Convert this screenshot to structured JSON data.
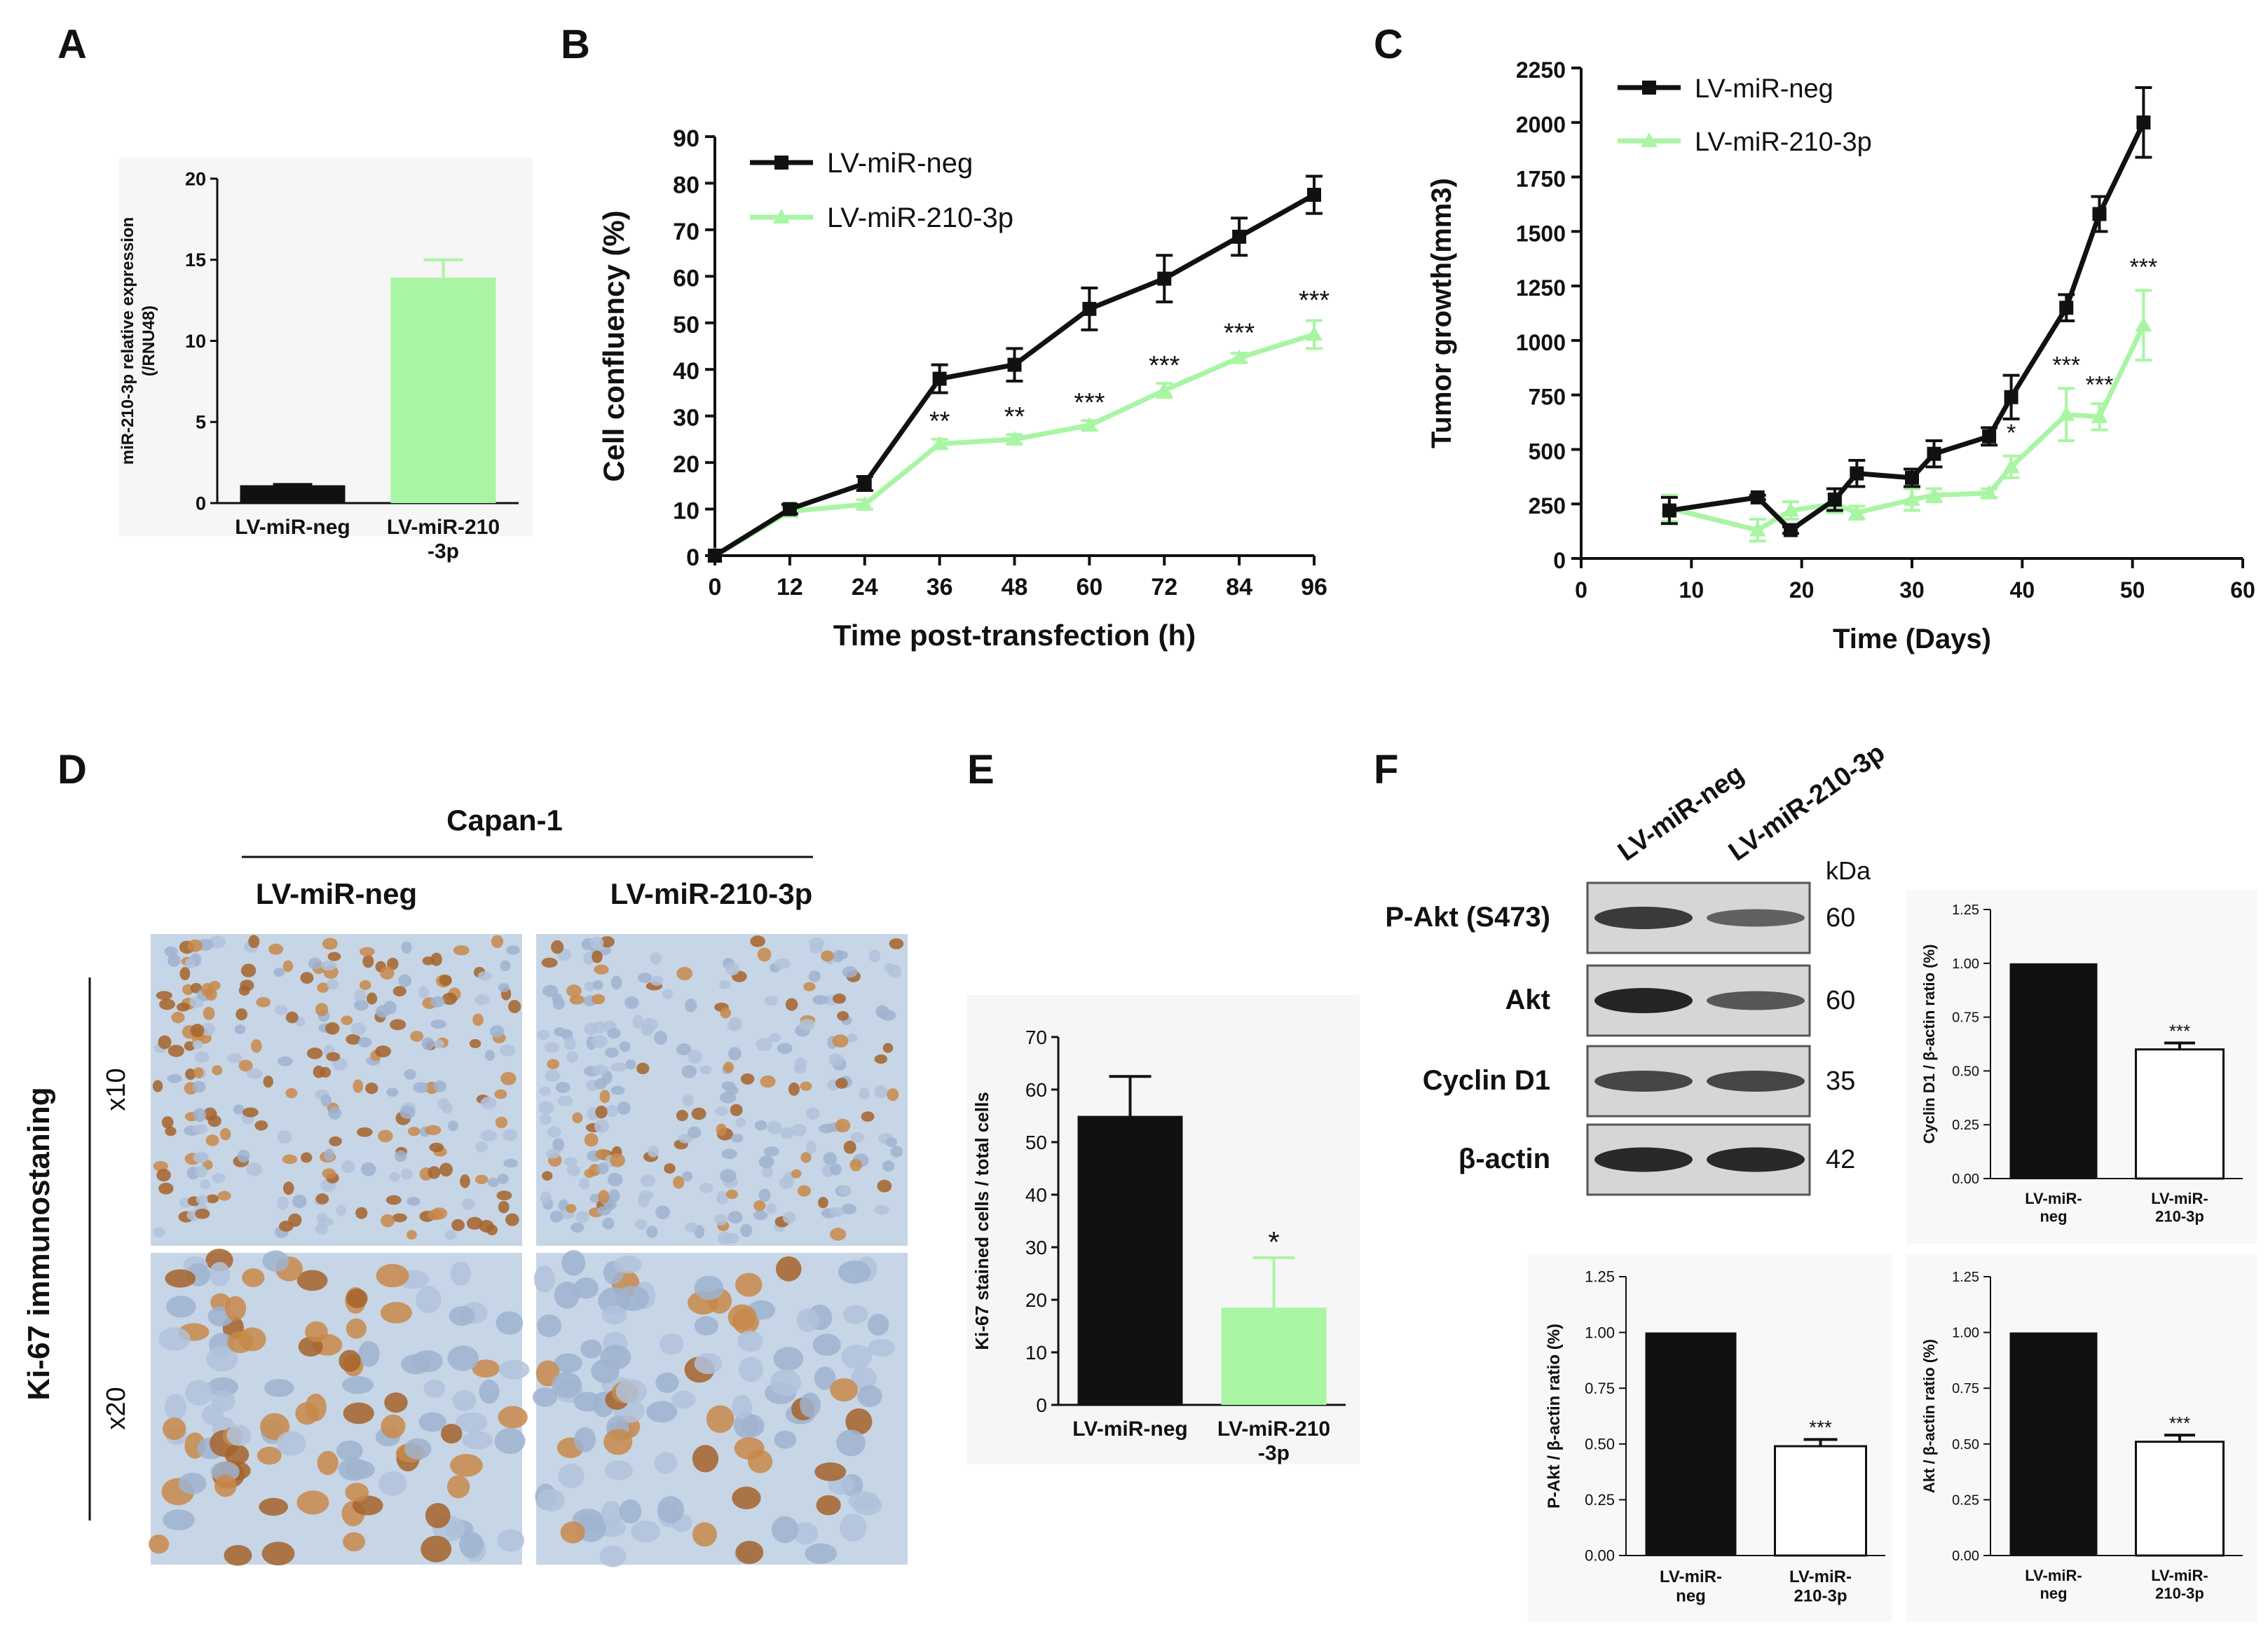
{
  "panels": {
    "A": "A",
    "B": "B",
    "C": "C",
    "D": "D",
    "E": "E",
    "F": "F"
  },
  "colors": {
    "neg": "#111111",
    "treated": "#a9f5a4",
    "axis": "#111111"
  },
  "chart_data": [
    {
      "id": "A",
      "type": "bar",
      "title": "",
      "categories": [
        "LV-miR-neg",
        "LV-miR-210\n-3p"
      ],
      "values": [
        1.1,
        13.9
      ],
      "errors": [
        0.05,
        1.1
      ],
      "ylabel": "miR-210-3p relative expression\n(/RNU48)",
      "ylim": [
        0,
        20
      ],
      "yticks": [
        0,
        5,
        10,
        15,
        20
      ],
      "colors": [
        "#111111",
        "#a9f5a4"
      ],
      "significance": [
        "",
        ""
      ]
    },
    {
      "id": "B",
      "type": "line",
      "xlabel": "Time post-transfection (h)",
      "ylabel": "Cell confluency (%)",
      "xlim": [
        0,
        96
      ],
      "ylim": [
        0,
        90
      ],
      "xticks": [
        0,
        12,
        24,
        36,
        48,
        60,
        72,
        84,
        96
      ],
      "yticks": [
        0,
        10,
        20,
        30,
        40,
        50,
        60,
        70,
        80,
        90
      ],
      "legend": "top-left",
      "series": [
        {
          "name": "LV-miR-neg",
          "color": "#111111",
          "marker": "square",
          "x": [
            0,
            12,
            24,
            36,
            48,
            60,
            72,
            84,
            96
          ],
          "y": [
            0,
            10,
            15.5,
            38,
            41,
            53,
            59.5,
            68.5,
            77.5
          ],
          "err": [
            0,
            1,
            1.5,
            3,
            3.5,
            4.5,
            5,
            4,
            4
          ]
        },
        {
          "name": "LV-miR-210-3p",
          "color": "#a9f5a4",
          "marker": "triangle",
          "x": [
            0,
            12,
            24,
            36,
            48,
            60,
            72,
            84,
            96
          ],
          "y": [
            0,
            9.5,
            11,
            24,
            25,
            28,
            35.5,
            42.5,
            47.5
          ],
          "err": [
            0,
            1,
            1,
            1,
            1,
            1,
            1.5,
            1,
            3
          ]
        }
      ],
      "annotations": [
        {
          "x": 36,
          "y": 27,
          "text": "**"
        },
        {
          "x": 48,
          "y": 28,
          "text": "**"
        },
        {
          "x": 60,
          "y": 31,
          "text": "***"
        },
        {
          "x": 72,
          "y": 39,
          "text": "***"
        },
        {
          "x": 84,
          "y": 46,
          "text": "***"
        },
        {
          "x": 96,
          "y": 53,
          "text": "***"
        }
      ]
    },
    {
      "id": "C",
      "type": "line",
      "xlabel": "Time (Days)",
      "ylabel": "Tumor growth(mm3)",
      "xlim": [
        0,
        60
      ],
      "ylim": [
        0,
        2250
      ],
      "xticks": [
        0,
        10,
        20,
        30,
        40,
        50,
        60
      ],
      "yticks": [
        0,
        250,
        500,
        750,
        1000,
        1250,
        1500,
        1750,
        2000,
        2250
      ],
      "legend": "top-left",
      "series": [
        {
          "name": "LV-miR-neg",
          "color": "#111111",
          "marker": "square",
          "x": [
            8,
            16,
            19,
            23,
            25,
            30,
            32,
            37,
            39,
            44,
            47,
            51
          ],
          "y": [
            220,
            280,
            130,
            270,
            390,
            370,
            480,
            560,
            740,
            1150,
            1580,
            2000
          ],
          "err": [
            60,
            10,
            15,
            50,
            60,
            40,
            60,
            40,
            100,
            60,
            80,
            160
          ]
        },
        {
          "name": "LV-miR-210-3p",
          "color": "#a9f5a4",
          "marker": "triangle",
          "x": [
            8,
            16,
            19,
            23,
            25,
            30,
            32,
            37,
            39,
            44,
            47,
            51
          ],
          "y": [
            230,
            130,
            220,
            250,
            210,
            270,
            290,
            300,
            420,
            660,
            650,
            1070
          ],
          "err": [
            60,
            50,
            40,
            40,
            30,
            50,
            30,
            20,
            50,
            120,
            60,
            160
          ]
        }
      ],
      "annotations": [
        {
          "x": 39,
          "y": 540,
          "text": "*"
        },
        {
          "x": 44,
          "y": 850,
          "text": "***"
        },
        {
          "x": 47,
          "y": 760,
          "text": "***"
        },
        {
          "x": 51,
          "y": 1300,
          "text": "***"
        }
      ]
    },
    {
      "id": "E",
      "type": "bar",
      "categories": [
        "LV-miR-neg",
        "LV-miR-210\n-3p"
      ],
      "values": [
        55,
        18.5
      ],
      "errors": [
        7.5,
        9.5
      ],
      "ylabel": "Ki-67 stained cells / total cells",
      "ylim": [
        0,
        70
      ],
      "yticks": [
        0,
        10,
        20,
        30,
        40,
        50,
        60,
        70
      ],
      "colors": [
        "#111111",
        "#a9f5a4"
      ],
      "significance": [
        "",
        "*"
      ]
    },
    {
      "id": "F1",
      "type": "bar",
      "categories": [
        "LV-miR-\nneg",
        "LV-miR-\n210-3p"
      ],
      "values": [
        1.0,
        0.6
      ],
      "errors": [
        0,
        0.03
      ],
      "ylabel": "Cyclin D1 / β-actin ratio (%)",
      "ylim": [
        0,
        1.25
      ],
      "yticks": [
        "0.00",
        "0.25",
        "0.50",
        "0.75",
        "1.00",
        "1.25"
      ],
      "colors": [
        "#111111",
        "#ffffff"
      ],
      "significance": [
        "",
        "***"
      ]
    },
    {
      "id": "F2",
      "type": "bar",
      "categories": [
        "LV-miR-\nneg",
        "LV-miR-\n210-3p"
      ],
      "values": [
        1.0,
        0.49
      ],
      "errors": [
        0,
        0.03
      ],
      "ylabel": "P-Akt / β-actin ratio (%)",
      "ylim": [
        0,
        1.25
      ],
      "yticks": [
        "0.00",
        "0.25",
        "0.50",
        "0.75",
        "1.00",
        "1.25"
      ],
      "colors": [
        "#111111",
        "#ffffff"
      ],
      "significance": [
        "",
        "***"
      ]
    },
    {
      "id": "F3",
      "type": "bar",
      "categories": [
        "LV-miR-\nneg",
        "LV-miR-\n210-3p"
      ],
      "values": [
        1.0,
        0.51
      ],
      "errors": [
        0,
        0.03
      ],
      "ylabel": "Akt / β-actin ratio (%)",
      "ylim": [
        0,
        1.25
      ],
      "yticks": [
        "0.00",
        "0.25",
        "0.50",
        "0.75",
        "1.00",
        "1.25"
      ],
      "colors": [
        "#111111",
        "#ffffff"
      ],
      "significance": [
        "",
        "***"
      ]
    }
  ],
  "panelD": {
    "cell_line": "Capan-1",
    "columns": [
      "LV-miR-neg",
      "LV-miR-210-3p"
    ],
    "rows": [
      "x10",
      "x20"
    ],
    "side_label": "Ki-67 immunostaning",
    "stain_intensity": [
      [
        1.0,
        0.5
      ],
      [
        1.0,
        0.45
      ]
    ]
  },
  "panelF": {
    "lanes": [
      "LV-miR-neg",
      "LV-miR-210-3p"
    ],
    "kda_label": "kDa",
    "blots": [
      {
        "name": "P-Akt (S473)",
        "kda": "60",
        "bands": [
          0.8,
          0.45
        ]
      },
      {
        "name": "Akt",
        "kda": "60",
        "bands": [
          1.0,
          0.55
        ]
      },
      {
        "name": "Cyclin D1",
        "kda": "35",
        "bands": [
          0.7,
          0.7
        ]
      },
      {
        "name": "β-actin",
        "kda": "42",
        "bands": [
          0.95,
          0.95
        ]
      }
    ]
  }
}
